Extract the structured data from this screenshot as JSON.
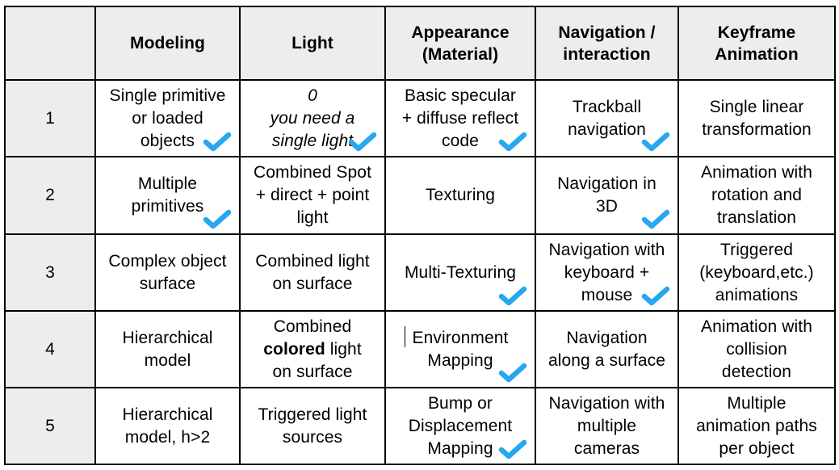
{
  "colors": {
    "checkmark": "#27a7ef",
    "header_fill": "#ededed",
    "border": "#000000"
  },
  "columns": [
    "",
    "Modeling",
    "Light",
    "Appearance\n(Material)",
    "Navigation /\ninteraction",
    "Keyframe\nAnimation"
  ],
  "rows": [
    {
      "level": "1",
      "cells": [
        {
          "text": "Single primitive\nor loaded\nobjects",
          "checked": true
        },
        {
          "text": "0\nyou need a\nsingle light",
          "italic": true,
          "checked": true
        },
        {
          "text": "Basic specular\n+ diffuse reflect\ncode",
          "checked": true
        },
        {
          "text": "Trackball\nnavigation",
          "checked": true
        },
        {
          "text": "Single linear\ntransformation",
          "checked": false
        }
      ]
    },
    {
      "level": "2",
      "cells": [
        {
          "text": "Multiple\nprimitives",
          "checked": true
        },
        {
          "text": "Combined Spot\n+ direct + point\nlight",
          "checked": false
        },
        {
          "text": "Texturing",
          "checked": false
        },
        {
          "text": "Navigation in\n3D",
          "checked": true
        },
        {
          "text": "Animation with\nrotation and\ntranslation",
          "checked": false
        }
      ]
    },
    {
      "level": "3",
      "cells": [
        {
          "text": "Complex object\nsurface",
          "checked": false
        },
        {
          "text": "Combined light\non surface",
          "checked": false
        },
        {
          "text": "Multi-Texturing",
          "checked": true
        },
        {
          "text": "Navigation with\nkeyboard +\nmouse",
          "checked": true
        },
        {
          "text": "Triggered\n(keyboard,etc.)\nanimations",
          "checked": false
        }
      ]
    },
    {
      "level": "4",
      "cells": [
        {
          "text": "Hierarchical\nmodel",
          "checked": false
        },
        {
          "parts": [
            "Combined\n",
            "colored",
            " light\non surface"
          ],
          "checked": false
        },
        {
          "text": "Environment\nMapping",
          "checked": true,
          "caret": true
        },
        {
          "text": "Navigation\nalong a surface",
          "checked": false
        },
        {
          "text": "Animation with\ncollision\ndetection",
          "checked": false
        }
      ]
    },
    {
      "level": "5",
      "cells": [
        {
          "text": "Hierarchical\nmodel, h>2",
          "checked": false
        },
        {
          "text": "Triggered light\nsources",
          "checked": false
        },
        {
          "text": "Bump or\nDisplacement\nMapping",
          "checked": true
        },
        {
          "text": "Navigation with\nmultiple\ncameras",
          "checked": false
        },
        {
          "text": "Multiple\nanimation paths\nper object",
          "checked": false
        }
      ]
    }
  ]
}
